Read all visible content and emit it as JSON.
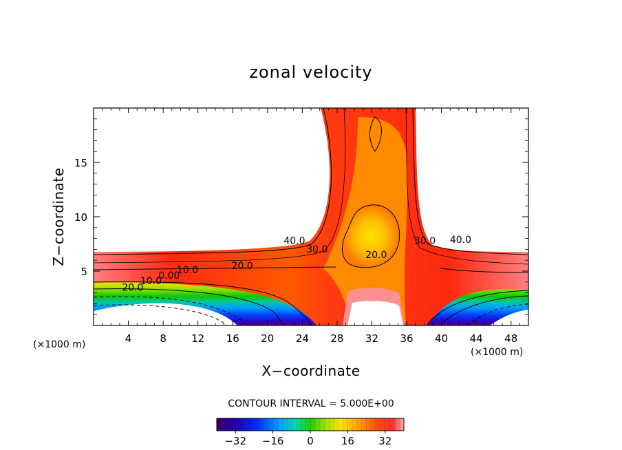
{
  "chart_data": {
    "type": "heatmap",
    "title": "zonal velocity",
    "xlabel": "X−coordinate",
    "ylabel": "Z−coordinate",
    "x_unit_left": "(×1000 m)",
    "x_unit_right": "(×1000 m)",
    "xlim": [
      0,
      50
    ],
    "ylim": [
      0,
      20
    ],
    "x_ticks": [
      "4",
      "8",
      "12",
      "16",
      "20",
      "24",
      "28",
      "32",
      "36",
      "40",
      "44",
      "48"
    ],
    "x_tick_values": [
      4,
      8,
      12,
      16,
      20,
      24,
      28,
      32,
      36,
      40,
      44,
      48
    ],
    "y_ticks": [
      "5",
      "10",
      "15"
    ],
    "y_tick_values": [
      5,
      10,
      15
    ],
    "contour_interval_text": "CONTOUR INTERVAL = 5.000E+00",
    "contour_labels": [
      {
        "text": "40.0",
        "x": 23.1,
        "z": 7.5
      },
      {
        "text": "30.0",
        "x": 25.7,
        "z": 6.7
      },
      {
        "text": "20.0",
        "x": 17.1,
        "z": 5.2
      },
      {
        "text": "10.0",
        "x": 10.8,
        "z": 4.8
      },
      {
        "text": "0.00",
        "x": 8.7,
        "z": 4.3
      },
      {
        "text": "10.0",
        "x": 6.6,
        "z": 3.8
      },
      {
        "text": "20.0",
        "x": 4.5,
        "z": 3.2
      },
      {
        "text": "20.0",
        "x": 32.5,
        "z": 6.2
      },
      {
        "text": "30.0",
        "x": 38.1,
        "z": 7.5
      },
      {
        "text": "40.0",
        "x": 42.2,
        "z": 7.6
      }
    ],
    "colorbar": {
      "range": [
        -40,
        40
      ],
      "ticks": [
        "−32",
        "−16",
        "0",
        "16",
        "32"
      ],
      "tick_values": [
        -32,
        -16,
        0,
        16,
        32
      ]
    },
    "grid": false
  }
}
